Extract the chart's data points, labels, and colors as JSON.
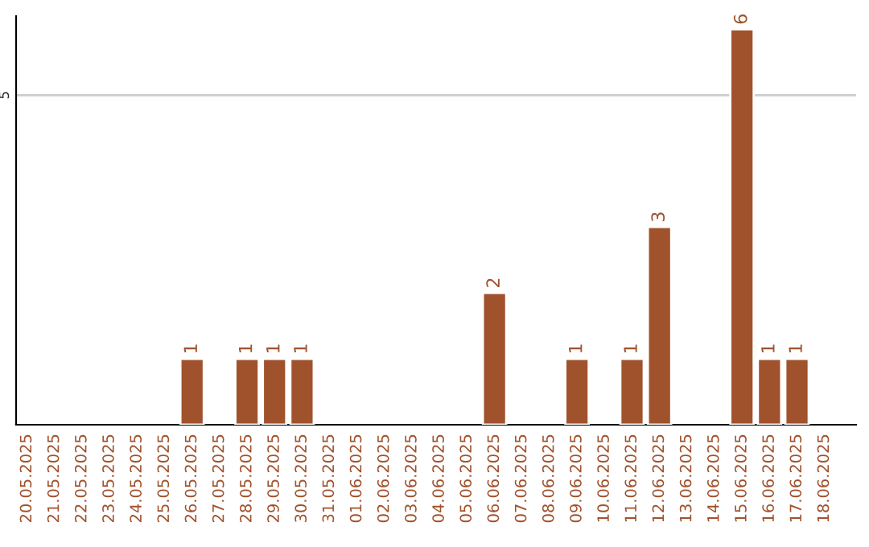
{
  "chart_data": {
    "type": "bar",
    "categories": [
      "20.05.2025",
      "21.05.2025",
      "22.05.2025",
      "23.05.2025",
      "24.05.2025",
      "25.05.2025",
      "26.05.2025",
      "27.05.2025",
      "28.05.2025",
      "29.05.2025",
      "30.05.2025",
      "31.05.2025",
      "01.06.2025",
      "02.06.2025",
      "03.06.2025",
      "04.06.2025",
      "05.06.2025",
      "06.06.2025",
      "07.06.2025",
      "08.06.2025",
      "09.06.2025",
      "10.06.2025",
      "11.06.2025",
      "12.06.2025",
      "13.06.2025",
      "14.06.2025",
      "15.06.2025",
      "16.06.2025",
      "17.06.2025",
      "18.06.2025"
    ],
    "values": [
      null,
      null,
      null,
      null,
      null,
      null,
      1,
      null,
      1,
      1,
      1,
      null,
      null,
      null,
      null,
      null,
      null,
      2,
      null,
      null,
      1,
      null,
      1,
      3,
      null,
      null,
      6,
      1,
      1,
      null
    ],
    "color": "#a0522d",
    "ylim": [
      0,
      6.2
    ],
    "yticks": [
      5
    ],
    "grid": "y",
    "data_labels": true,
    "legend": false
  }
}
